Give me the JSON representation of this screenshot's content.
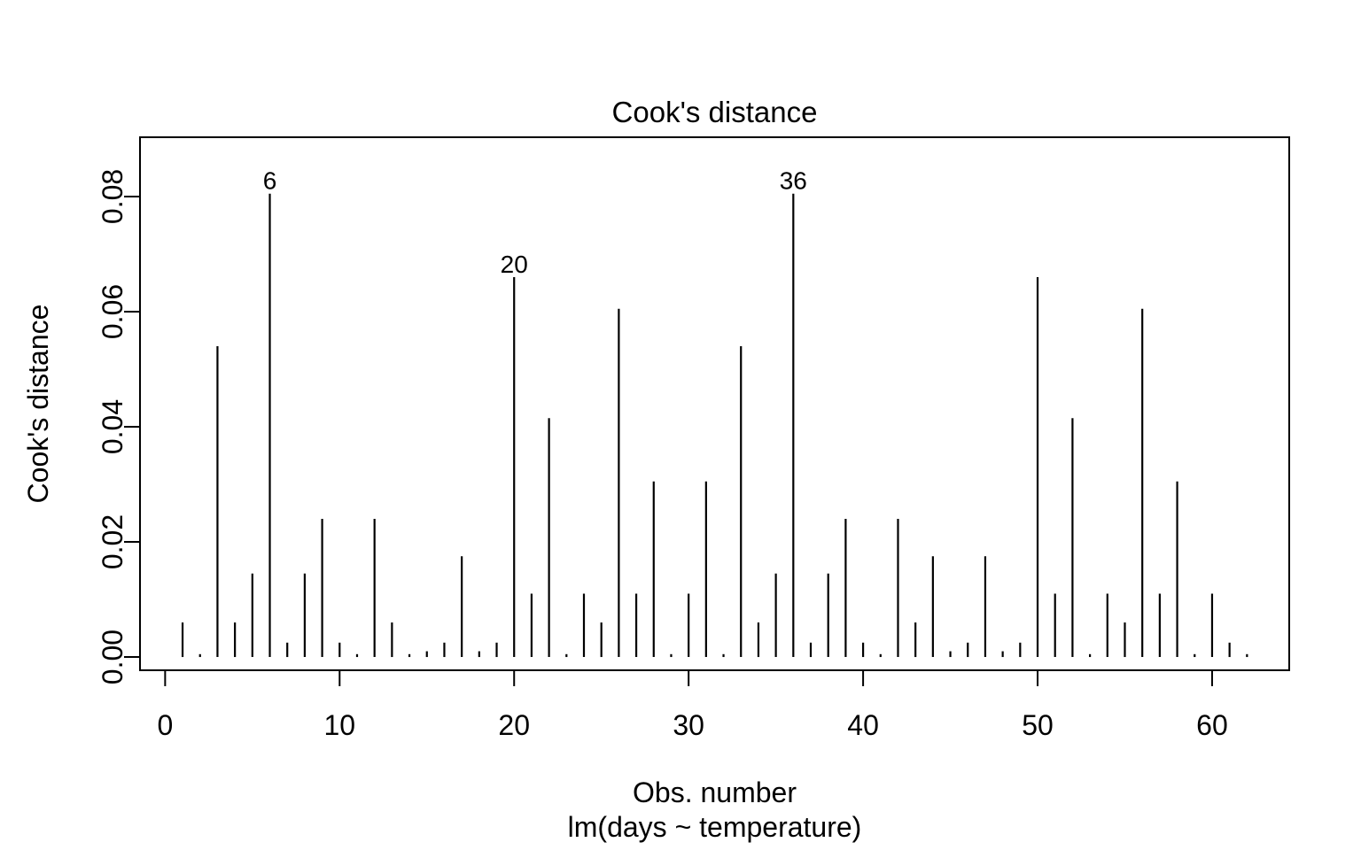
{
  "figure": {
    "title": "Cook's distance",
    "x_axis_label": "Obs. number",
    "x_axis_sublabel": "lm(days ~ temperature)",
    "y_axis_label": "Cook's distance"
  },
  "chart_data": {
    "type": "bar",
    "title": "Cook's distance",
    "xlabel": "Obs. number",
    "sub_xlabel": "lm(days ~ temperature)",
    "ylabel": "Cook's distance",
    "obs": [
      1,
      2,
      3,
      4,
      5,
      6,
      7,
      8,
      9,
      10,
      11,
      12,
      13,
      14,
      15,
      16,
      17,
      18,
      19,
      20,
      21,
      22,
      23,
      24,
      25,
      26,
      27,
      28,
      29,
      30,
      31,
      32,
      33,
      34,
      35,
      36,
      37,
      38,
      39,
      40,
      41,
      42,
      43,
      44,
      45,
      46,
      47,
      48,
      49,
      50,
      51,
      52,
      53,
      54,
      55,
      56,
      57,
      58,
      59,
      60,
      61,
      62
    ],
    "values": [
      0.006,
      0.0005,
      0.054,
      0.006,
      0.0145,
      0.0805,
      0.0025,
      0.0145,
      0.024,
      0.0025,
      0.0005,
      0.024,
      0.006,
      0.0005,
      0.001,
      0.0025,
      0.0175,
      0.001,
      0.0025,
      0.066,
      0.011,
      0.0415,
      0.0005,
      0.011,
      0.006,
      0.0605,
      0.011,
      0.0305,
      0.0005,
      0.011,
      0.0305,
      0.0005,
      0.054,
      0.006,
      0.0145,
      0.0805,
      0.0025,
      0.0145,
      0.024,
      0.0025,
      0.0005,
      0.024,
      0.006,
      0.0175,
      0.001,
      0.0025,
      0.0175,
      0.001,
      0.0025,
      0.066,
      0.011,
      0.0415,
      0.0005,
      0.011,
      0.006,
      0.0605,
      0.011,
      0.0305,
      0.0005,
      0.011,
      0.0025,
      0.0005
    ],
    "annotations": [
      {
        "obs": 6,
        "label": "6"
      },
      {
        "obs": 20,
        "label": "20"
      },
      {
        "obs": 36,
        "label": "36"
      }
    ],
    "xticks": [
      "0",
      "10",
      "20",
      "30",
      "40",
      "50",
      "60"
    ],
    "xtick_values": [
      0,
      10,
      20,
      30,
      40,
      50,
      60
    ],
    "yticks": [
      "0.00",
      "0.02",
      "0.04",
      "0.06",
      "0.08"
    ],
    "ytick_values": [
      0.0,
      0.02,
      0.04,
      0.06,
      0.08
    ],
    "xlim": [
      -1.44,
      64.42
    ],
    "ylim": [
      -0.0023,
      0.0903
    ],
    "grid": false,
    "legend": null,
    "bar_color": "#000000",
    "axis_color": "#000000",
    "background": "#ffffff"
  }
}
